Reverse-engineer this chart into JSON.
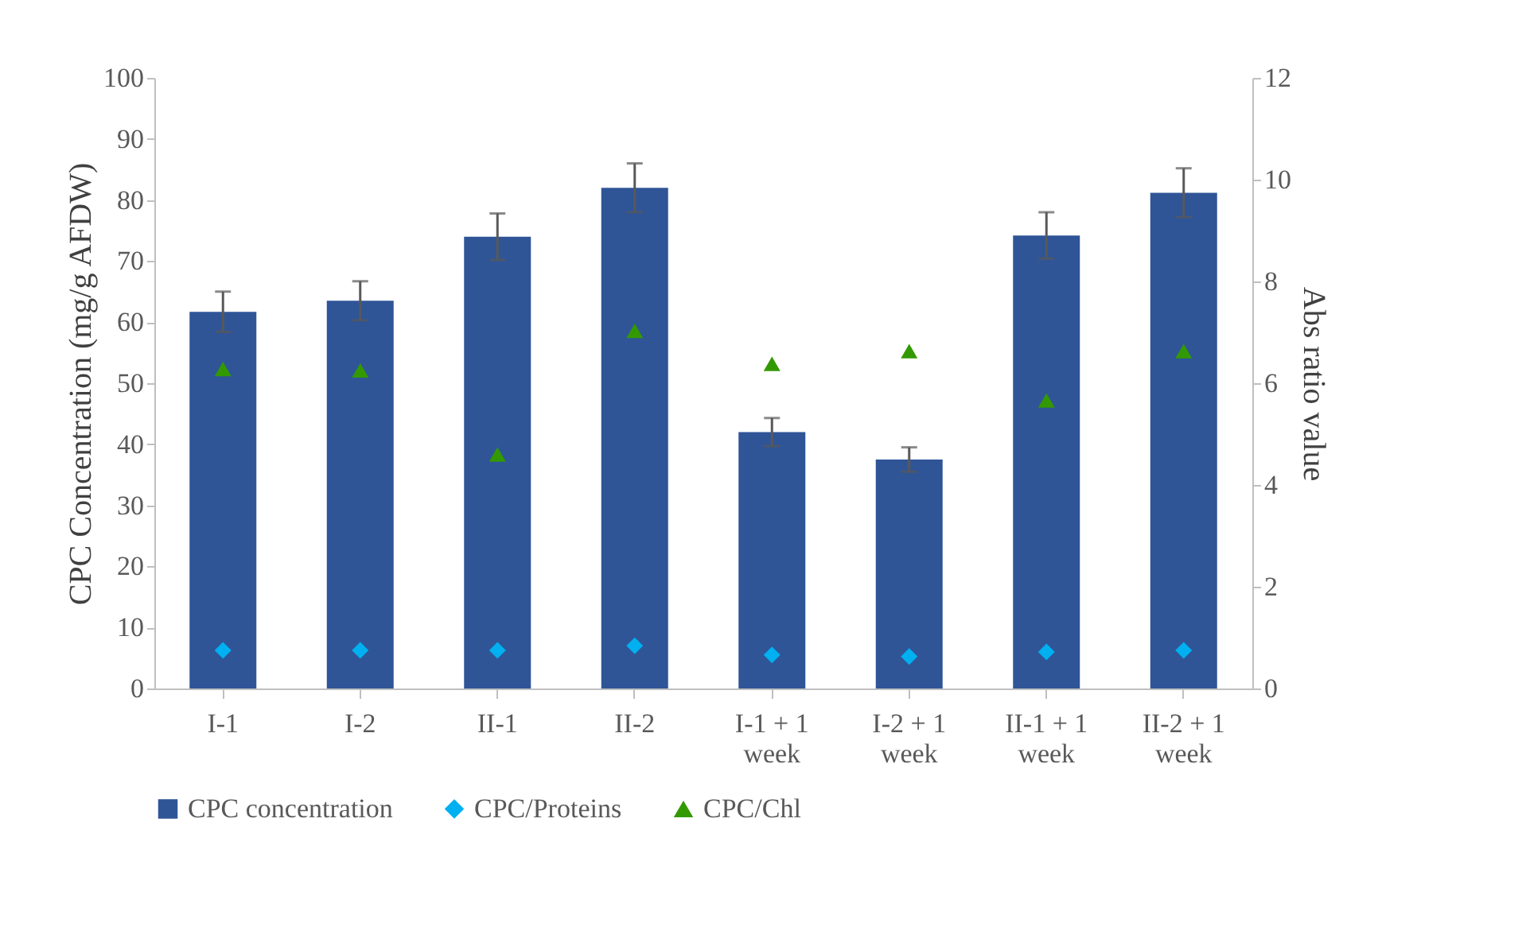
{
  "chart_data": {
    "type": "bar",
    "categories": [
      "I-1",
      "I-2",
      "II-1",
      "II-2",
      "I-1 + 1 week",
      "I-2 + 1 week",
      "II-1 + 1 week",
      "II-2 + 1 week"
    ],
    "series": [
      {
        "name": "CPC concentration",
        "type": "bar",
        "color": "#2f5597",
        "values": [
          61.7,
          63.5,
          74,
          82,
          42,
          37.5,
          74.2,
          81.2
        ],
        "errors": [
          3.3,
          3.2,
          3.8,
          4,
          2.3,
          2,
          3.8,
          4
        ]
      },
      {
        "name": "CPC/Proteins",
        "type": "scatter",
        "axis": "y2",
        "marker": "diamond",
        "color": "#00b0f0",
        "values": [
          0.75,
          0.75,
          0.75,
          0.84,
          0.66,
          0.63,
          0.72,
          0.75
        ]
      },
      {
        "name": "CPC/Chl",
        "type": "scatter",
        "axis": "y2",
        "marker": "triangle",
        "color": "#339900",
        "values": [
          6.28,
          6.25,
          4.6,
          7.03,
          6.38,
          6.63,
          5.66,
          6.63
        ]
      }
    ],
    "ylabel": "CPC Concentration (mg/g AFDW)",
    "y2label": "Abs ratio value",
    "ylim": [
      0,
      100
    ],
    "yticks": [
      0,
      10,
      20,
      30,
      40,
      50,
      60,
      70,
      80,
      90,
      100
    ],
    "y2lim": [
      0,
      12
    ],
    "y2ticks": [
      0,
      2,
      4,
      6,
      8,
      10,
      12
    ],
    "legend": "bottom",
    "grid": false
  }
}
